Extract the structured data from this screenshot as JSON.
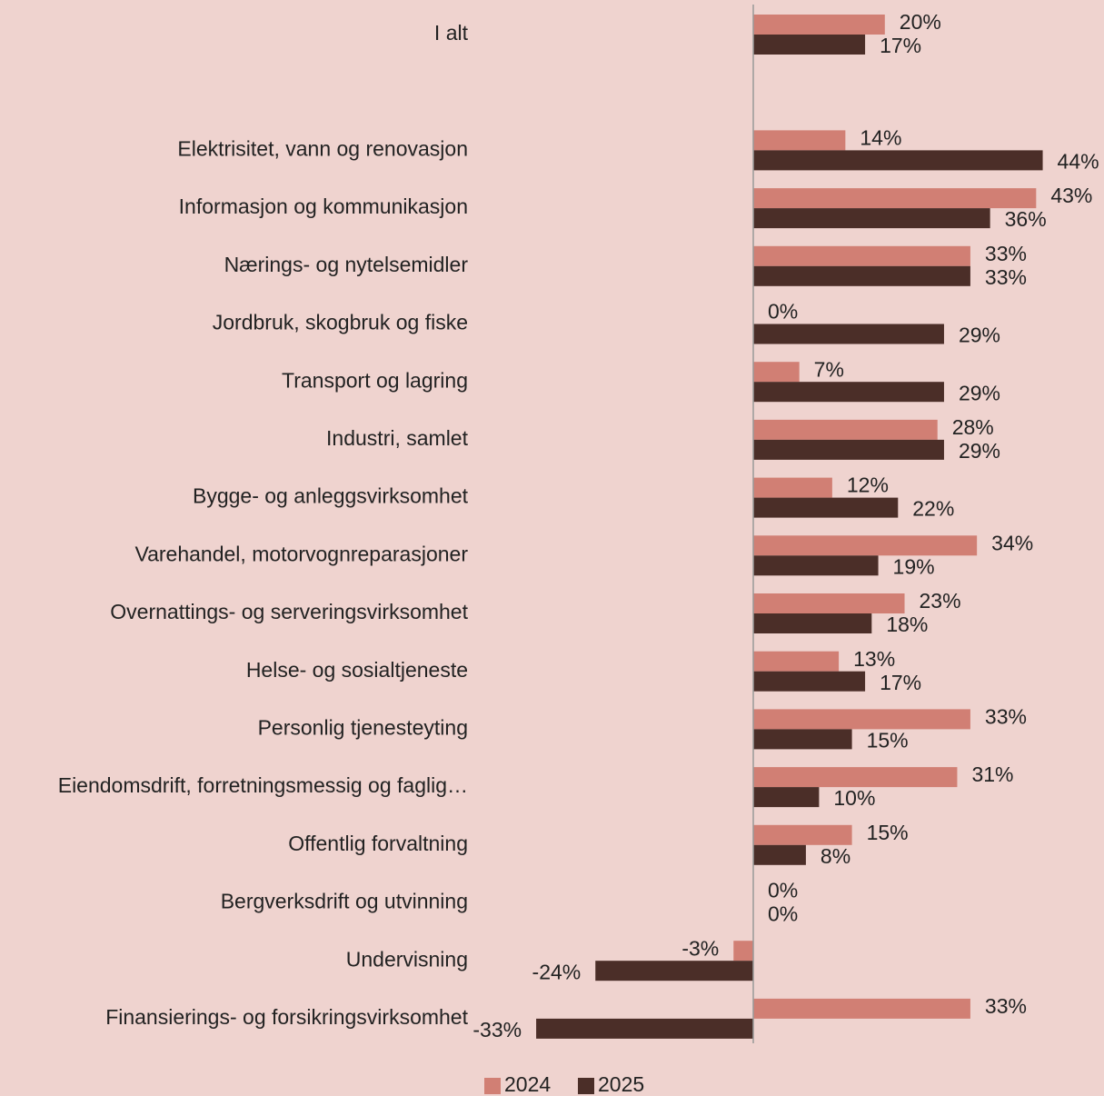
{
  "chart_data": {
    "type": "hbar",
    "categories": [
      "I alt",
      null,
      "Elektrisitet, vann og renovasjon",
      "Informasjon og kommunikasjon",
      "Nærings- og nytelsemidler",
      "Jordbruk, skogbruk og fiske",
      "Transport og lagring",
      "Industri, samlet",
      "Bygge- og anleggsvirksomhet",
      "Varehandel, motorvognreparasjoner",
      "Overnattings- og serveringsvirksomhet",
      "Helse- og sosialtjeneste",
      "Personlig tjenesteyting",
      "Eiendomsdrift, forretningsmessig og faglig…",
      "Offentlig forvaltning",
      "Bergverksdrift og utvinning",
      "Undervisning",
      "Finansierings- og forsikringsvirksomhet"
    ],
    "series": [
      {
        "name": "2024",
        "color": "#d17f74",
        "values": [
          20,
          null,
          14,
          43,
          33,
          0,
          7,
          28,
          12,
          34,
          23,
          13,
          33,
          31,
          15,
          0,
          -3,
          33
        ],
        "value_labels": [
          "20%",
          null,
          "14%",
          "43%",
          "33%",
          "0%",
          "7%",
          "28%",
          "12%",
          "34%",
          "23%",
          "13%",
          "33%",
          "31%",
          "15%",
          "0%",
          "-3%",
          "33%"
        ]
      },
      {
        "name": "2025",
        "color": "#4b2e28",
        "values": [
          17,
          null,
          44,
          36,
          33,
          29,
          29,
          29,
          22,
          19,
          18,
          17,
          15,
          10,
          8,
          0,
          -24,
          -33
        ],
        "value_labels": [
          "17%",
          null,
          "44%",
          "36%",
          "33%",
          "29%",
          "29%",
          "29%",
          "22%",
          "19%",
          "18%",
          "17%",
          "15%",
          "10%",
          "8%",
          "0%",
          "-24%",
          "-33%"
        ]
      }
    ],
    "xlim": [
      -50,
      50
    ],
    "legend": "bottom"
  }
}
